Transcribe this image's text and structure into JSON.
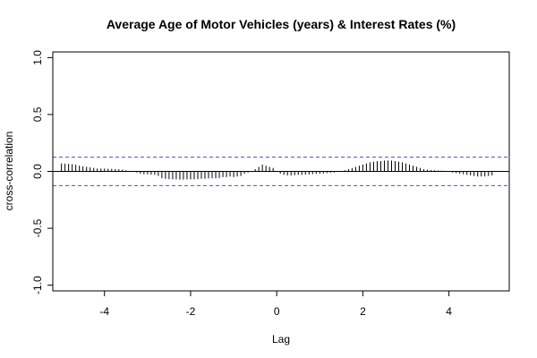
{
  "chart_data": {
    "type": "bar",
    "title": "Average Age of Motor Vehicles (years) & Interest Rates (%)",
    "xlabel": "Lag",
    "ylabel": "cross-correlation",
    "xlim": [
      -5.2,
      5.4
    ],
    "ylim": [
      -1.05,
      1.05
    ],
    "xticks": [
      -4,
      -2,
      0,
      2,
      4
    ],
    "yticks": [
      -1.0,
      -0.5,
      0.0,
      0.5,
      1.0
    ],
    "ytick_labels": [
      "-1.0",
      "-0.5",
      "0.0",
      "0.5",
      "1.0"
    ],
    "confidence_band": [
      0.125,
      -0.125
    ],
    "colors": {
      "bars": "#000000",
      "band": "#4b4bd9",
      "zero_line": "#000000"
    },
    "grid": false,
    "x": [
      -5.0,
      -4.9167,
      -4.8333,
      -4.75,
      -4.6667,
      -4.5833,
      -4.5,
      -4.4167,
      -4.3333,
      -4.25,
      -4.1667,
      -4.0833,
      -4.0,
      -3.9167,
      -3.8333,
      -3.75,
      -3.6667,
      -3.5833,
      -3.5,
      -3.4167,
      -3.3333,
      -3.25,
      -3.1667,
      -3.0833,
      -3.0,
      -2.9167,
      -2.8333,
      -2.75,
      -2.6667,
      -2.5833,
      -2.5,
      -2.4167,
      -2.3333,
      -2.25,
      -2.1667,
      -2.0833,
      -2.0,
      -1.9167,
      -1.8333,
      -1.75,
      -1.6667,
      -1.5833,
      -1.5,
      -1.4167,
      -1.3333,
      -1.25,
      -1.1667,
      -1.0833,
      -1.0,
      -0.9167,
      -0.8333,
      -0.75,
      -0.6667,
      -0.5833,
      -0.5,
      -0.4167,
      -0.3333,
      -0.25,
      -0.1667,
      -0.0833,
      0.0,
      0.0833,
      0.1667,
      0.25,
      0.3333,
      0.4167,
      0.5,
      0.5833,
      0.6667,
      0.75,
      0.8333,
      0.9167,
      1.0,
      1.0833,
      1.1667,
      1.25,
      1.3333,
      1.4167,
      1.5,
      1.5833,
      1.6667,
      1.75,
      1.8333,
      1.9167,
      2.0,
      2.0833,
      2.1667,
      2.25,
      2.3333,
      2.4167,
      2.5,
      2.5833,
      2.6667,
      2.75,
      2.8333,
      2.9167,
      3.0,
      3.0833,
      3.1667,
      3.25,
      3.3333,
      3.4167,
      3.5,
      3.5833,
      3.6667,
      3.75,
      3.8333,
      3.9167,
      4.0,
      4.0833,
      4.1667,
      4.25,
      4.3333,
      4.4167,
      4.5,
      4.5833,
      4.6667,
      4.75,
      4.8333,
      4.9167,
      5.0
    ],
    "values": [
      0.07,
      0.068,
      0.066,
      0.064,
      0.06,
      0.05,
      0.045,
      0.04,
      0.035,
      0.03,
      0.025,
      0.025,
      0.025,
      0.023,
      0.022,
      0.02,
      0.018,
      0.015,
      0.01,
      0.005,
      0.0,
      -0.01,
      -0.02,
      -0.025,
      -0.025,
      -0.028,
      -0.03,
      -0.04,
      -0.06,
      -0.065,
      -0.068,
      -0.07,
      -0.07,
      -0.072,
      -0.072,
      -0.07,
      -0.07,
      -0.07,
      -0.068,
      -0.065,
      -0.065,
      -0.062,
      -0.06,
      -0.06,
      -0.058,
      -0.05,
      -0.05,
      -0.045,
      -0.05,
      -0.045,
      -0.04,
      -0.02,
      -0.01,
      0.0,
      0.02,
      0.04,
      0.06,
      0.05,
      0.04,
      0.03,
      0.0,
      -0.02,
      -0.03,
      -0.035,
      -0.035,
      -0.033,
      -0.03,
      -0.03,
      -0.028,
      -0.026,
      -0.024,
      -0.022,
      -0.02,
      -0.018,
      -0.015,
      -0.012,
      -0.01,
      -0.005,
      0.0,
      0.01,
      0.02,
      0.03,
      0.04,
      0.05,
      0.06,
      0.07,
      0.08,
      0.085,
      0.09,
      0.09,
      0.095,
      0.095,
      0.095,
      0.09,
      0.085,
      0.08,
      0.07,
      0.06,
      0.05,
      0.04,
      0.03,
      0.02,
      0.015,
      0.012,
      0.01,
      0.008,
      0.006,
      0.004,
      0.0,
      -0.01,
      -0.015,
      -0.02,
      -0.025,
      -0.03,
      -0.035,
      -0.04,
      -0.045,
      -0.045,
      -0.045,
      -0.04,
      -0.035
    ]
  }
}
